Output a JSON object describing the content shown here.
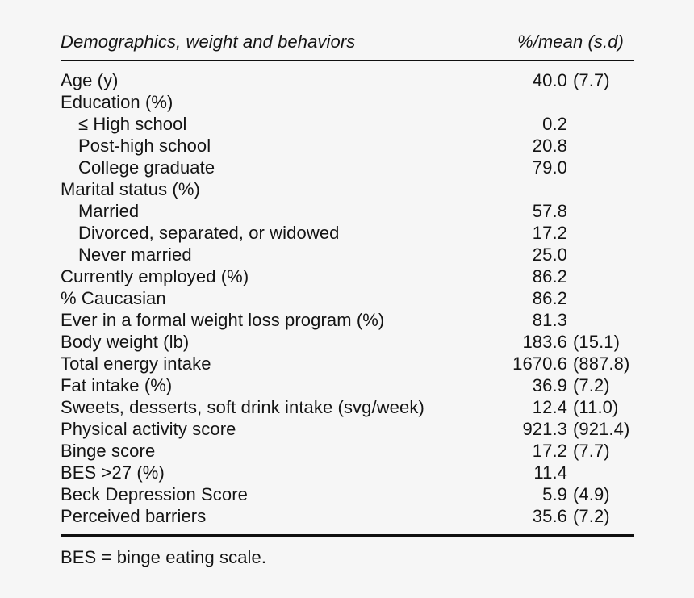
{
  "page": {
    "background_color": "#f6f6f6",
    "text_color": "#141414",
    "rule_color": "#101010"
  },
  "table": {
    "header": {
      "col1": "Demographics, weight and behaviors",
      "col2": "%/mean (s.d)"
    },
    "rows": [
      {
        "label": "Age (y)",
        "indent": 0,
        "value": "40.0",
        "sd": "(7.7)"
      },
      {
        "label": "Education (%)",
        "indent": 0,
        "value": "",
        "sd": ""
      },
      {
        "label": "≤ High school",
        "indent": 1,
        "value": "0.2",
        "sd": ""
      },
      {
        "label": "Post-high school",
        "indent": 1,
        "value": "20.8",
        "sd": ""
      },
      {
        "label": "College graduate",
        "indent": 1,
        "value": "79.0",
        "sd": ""
      },
      {
        "label": "Marital status (%)",
        "indent": 0,
        "value": "",
        "sd": ""
      },
      {
        "label": "Married",
        "indent": 1,
        "value": "57.8",
        "sd": ""
      },
      {
        "label": "Divorced, separated, or widowed",
        "indent": 1,
        "value": "17.2",
        "sd": ""
      },
      {
        "label": "Never married",
        "indent": 1,
        "value": "25.0",
        "sd": ""
      },
      {
        "label": "Currently employed (%)",
        "indent": 0,
        "value": "86.2",
        "sd": ""
      },
      {
        "label": "% Caucasian",
        "indent": 0,
        "value": "86.2",
        "sd": ""
      },
      {
        "label": "Ever in a formal weight loss program (%)",
        "indent": 0,
        "value": "81.3",
        "sd": ""
      },
      {
        "label": "Body weight (lb)",
        "indent": 0,
        "value": "183.6",
        "sd": "(15.1)"
      },
      {
        "label": "Total energy intake",
        "indent": 0,
        "value": "1670.6",
        "sd": "(887.8)"
      },
      {
        "label": "Fat intake (%)",
        "indent": 0,
        "value": "36.9",
        "sd": "(7.2)"
      },
      {
        "label": "Sweets, desserts, soft drink intake (svg/week)",
        "indent": 0,
        "value": "12.4",
        "sd": "(11.0)"
      },
      {
        "label": "Physical activity score",
        "indent": 0,
        "value": "921.3",
        "sd": "(921.4)"
      },
      {
        "label": "Binge score",
        "indent": 0,
        "value": "17.2",
        "sd": "(7.7)"
      },
      {
        "label": "BES >27 (%)",
        "indent": 0,
        "value": "11.4",
        "sd": ""
      },
      {
        "label": "Beck Depression Score",
        "indent": 0,
        "value": "5.9",
        "sd": "(4.9)"
      },
      {
        "label": "Perceived barriers",
        "indent": 0,
        "value": "35.6",
        "sd": "(7.2)"
      }
    ],
    "footnote": "BES = binge eating scale."
  }
}
